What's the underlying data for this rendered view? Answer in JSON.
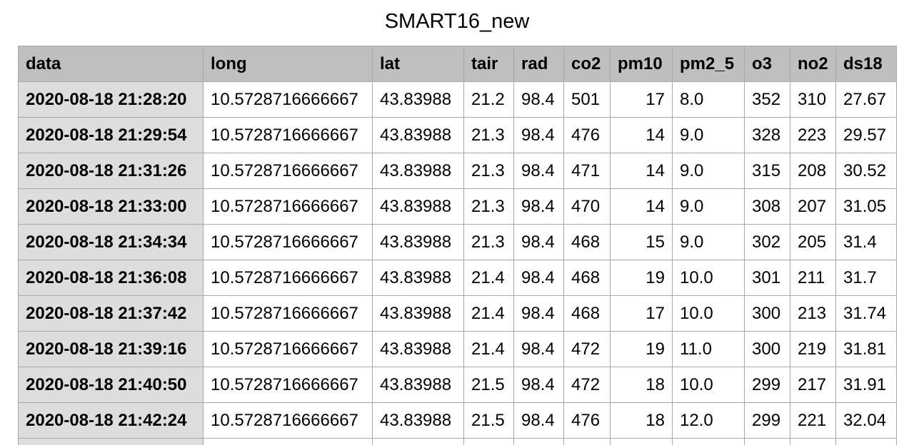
{
  "title": "SMART16_new",
  "table": {
    "columns": [
      "data",
      "long",
      "lat",
      "tair",
      "rad",
      "co2",
      "pm10",
      "pm2_5",
      "o3",
      "no2",
      "ds18"
    ],
    "rows": [
      [
        "2020-08-18 21:28:20",
        "10.5728716666667",
        "43.83988",
        "21.2",
        "98.4",
        "501",
        "17",
        "8.0",
        "352",
        "310",
        "27.67"
      ],
      [
        "2020-08-18 21:29:54",
        "10.5728716666667",
        "43.83988",
        "21.3",
        "98.4",
        "476",
        "14",
        "9.0",
        "328",
        "223",
        "29.57"
      ],
      [
        "2020-08-18 21:31:26",
        "10.5728716666667",
        "43.83988",
        "21.3",
        "98.4",
        "471",
        "14",
        "9.0",
        "315",
        "208",
        "30.52"
      ],
      [
        "2020-08-18 21:33:00",
        "10.5728716666667",
        "43.83988",
        "21.3",
        "98.4",
        "470",
        "14",
        "9.0",
        "308",
        "207",
        "31.05"
      ],
      [
        "2020-08-18 21:34:34",
        "10.5728716666667",
        "43.83988",
        "21.3",
        "98.4",
        "468",
        "15",
        "9.0",
        "302",
        "205",
        "31.4"
      ],
      [
        "2020-08-18 21:36:08",
        "10.5728716666667",
        "43.83988",
        "21.4",
        "98.4",
        "468",
        "19",
        "10.0",
        "301",
        "211",
        "31.7"
      ],
      [
        "2020-08-18 21:37:42",
        "10.5728716666667",
        "43.83988",
        "21.4",
        "98.4",
        "468",
        "17",
        "10.0",
        "300",
        "213",
        "31.74"
      ],
      [
        "2020-08-18 21:39:16",
        "10.5728716666667",
        "43.83988",
        "21.4",
        "98.4",
        "472",
        "19",
        "11.0",
        "300",
        "219",
        "31.81"
      ],
      [
        "2020-08-18 21:40:50",
        "10.5728716666667",
        "43.83988",
        "21.5",
        "98.4",
        "472",
        "18",
        "10.0",
        "299",
        "217",
        "31.91"
      ],
      [
        "2020-08-18 21:42:24",
        "10.5728716666667",
        "43.83988",
        "21.5",
        "98.4",
        "476",
        "18",
        "12.0",
        "299",
        "221",
        "32.04"
      ]
    ]
  }
}
